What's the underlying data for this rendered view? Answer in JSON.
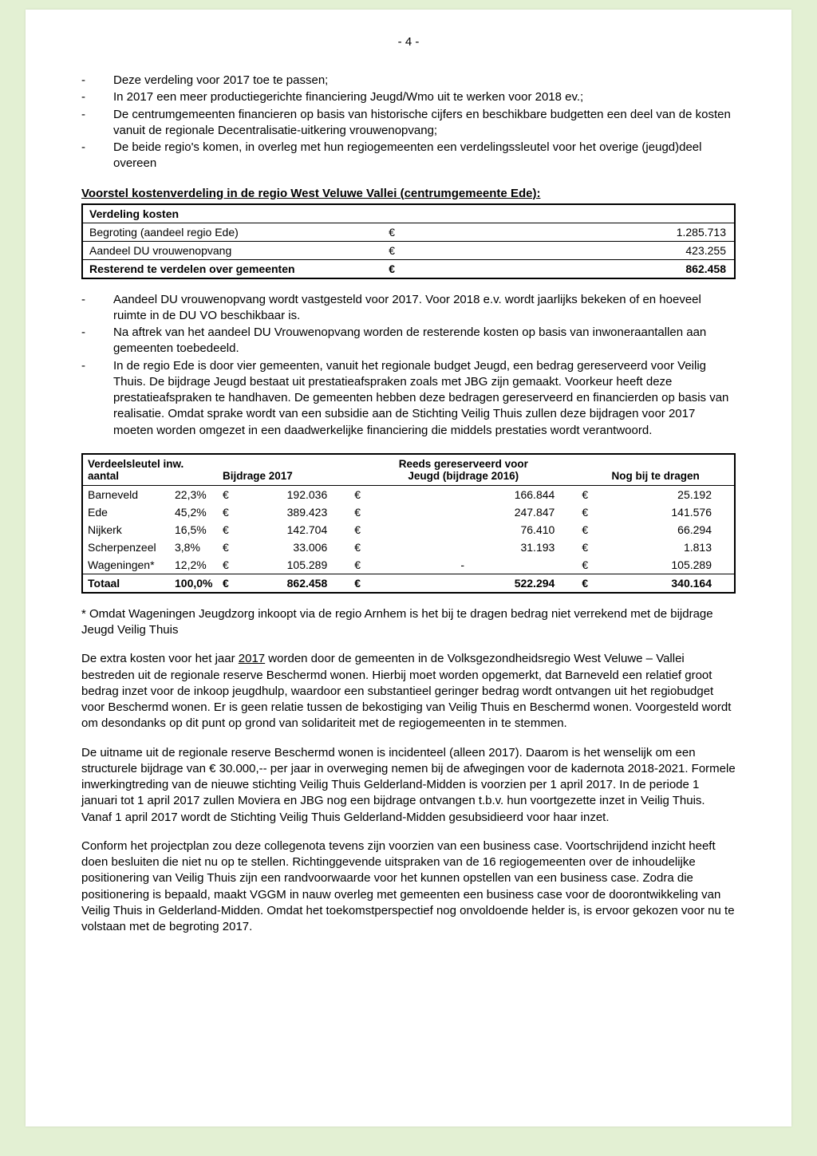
{
  "page_number": "- 4 -",
  "bullets_top": [
    "Deze verdeling voor 2017 toe te passen;",
    "In 2017 een meer productiegerichte financiering Jeugd/Wmo uit te werken voor 2018 ev.;",
    "De centrumgemeenten financieren op basis van historische cijfers en beschikbare budgetten een deel van de kosten vanuit de regionale Decentralisatie-uitkering vrouwenopvang;",
    "De beide regio's komen, in overleg met hun regiogemeenten een verdelingssleutel voor het overige (jeugd)deel overeen"
  ],
  "heading_main": "Voorstel kostenverdeling in de regio West Veluwe Vallei (centrumgemeente Ede):",
  "kosten_table": {
    "header": "Verdeling kosten",
    "rows": [
      {
        "label": "Begroting (aandeel regio Ede)",
        "cur": "€",
        "amount": "1.285.713",
        "bold": false
      },
      {
        "label": "Aandeel DU vrouwenopvang",
        "cur": "€",
        "amount": "423.255",
        "bold": false
      },
      {
        "label": "Resterend te verdelen over gemeenten",
        "cur": "€",
        "amount": "862.458",
        "bold": true
      }
    ]
  },
  "bullets_mid": [
    "Aandeel DU vrouwenopvang wordt vastgesteld voor 2017. Voor 2018 e.v. wordt jaarlijks bekeken of en hoeveel ruimte in de DU VO beschikbaar is.",
    "Na aftrek van het aandeel DU Vrouwenopvang worden de resterende kosten op basis van inwoneraantallen aan gemeenten toebedeeld.",
    "In de regio Ede is door vier gemeenten, vanuit het regionale budget Jeugd, een bedrag gereserveerd voor Veilig Thuis. De bijdrage Jeugd bestaat uit prestatieafspraken zoals met JBG zijn gemaakt. Voorkeur heeft deze prestatieafspraken te handhaven. De gemeenten hebben deze bedragen gereserveerd en financierden op basis van realisatie. Omdat sprake wordt van een subsidie aan de Stichting Veilig Thuis zullen deze bijdragen voor 2017 moeten worden omgezet in een daadwerkelijke financiering die middels prestaties wordt verantwoord."
  ],
  "verdeel_table": {
    "h1": "Verdeelsleutel inw. aantal",
    "h2": "Bijdrage 2017",
    "h3a": "Reeds gereserveerd voor",
    "h3b": "Jeugd (bijdrage 2016)",
    "h4": "Nog bij te dragen",
    "rows": [
      {
        "name": "Barneveld",
        "pct": "22,3%",
        "cur": "€",
        "bijdrage": "192.036",
        "reeds": "166.844",
        "nog": "25.192"
      },
      {
        "name": "Ede",
        "pct": "45,2%",
        "cur": "€",
        "bijdrage": "389.423",
        "reeds": "247.847",
        "nog": "141.576"
      },
      {
        "name": "Nijkerk",
        "pct": "16,5%",
        "cur": "€",
        "bijdrage": "142.704",
        "reeds": "76.410",
        "nog": "66.294"
      },
      {
        "name": "Scherpenzeel",
        "pct": "3,8%",
        "cur": "€",
        "bijdrage": "33.006",
        "reeds": "31.193",
        "nog": "1.813"
      },
      {
        "name": "Wageningen*",
        "pct": "12,2%",
        "cur": "€",
        "bijdrage": "105.289",
        "reeds": "-",
        "nog": "105.289"
      }
    ],
    "total": {
      "name": "Totaal",
      "pct": "100,0%",
      "cur": "€",
      "bijdrage": "862.458",
      "reeds": "522.294",
      "nog": "340.164"
    }
  },
  "footnote": "* Omdat Wageningen Jeugdzorg inkoopt via de regio Arnhem is het bij te dragen bedrag niet verrekend met de bijdrage Jeugd Veilig Thuis",
  "para3_pre": "De extra kosten voor het jaar ",
  "para3_year": "2017",
  "para3_post": " worden door de gemeenten in de Volksgezondheidsregio West Veluwe – Vallei bestreden uit de regionale reserve Beschermd wonen. Hierbij moet worden opgemerkt, dat Barneveld een relatief groot bedrag inzet voor de inkoop jeugdhulp, waardoor een substantieel geringer bedrag wordt ontvangen uit het regiobudget voor Beschermd wonen. Er is geen relatie tussen de bekostiging van Veilig Thuis en Beschermd wonen. Voorgesteld wordt om desondanks op dit punt op grond van solidariteit met de regiogemeenten in te stemmen.",
  "para4": "De uitname uit de regionale reserve Beschermd wonen is incidenteel (alleen 2017). Daarom is het wenselijk om een structurele bijdrage van € 30.000,-- per jaar in overweging nemen bij de afwegingen voor de kadernota 2018-2021. Formele inwerkingtreding van de nieuwe stichting Veilig Thuis Gelderland-Midden is voorzien per 1 april 2017. In de periode 1 januari tot 1 april 2017 zullen Moviera en JBG nog een bijdrage ontvangen t.b.v. hun voortgezette inzet in Veilig Thuis. Vanaf 1 april 2017 wordt de Stichting Veilig Thuis Gelderland-Midden gesubsidieerd voor haar inzet.",
  "para5": "Conform het projectplan zou deze collegenota tevens zijn voorzien van een business case. Voortschrijdend inzicht heeft doen besluiten die niet nu op te stellen. Richtinggevende uitspraken van de 16 regiogemeenten over de inhoudelijke positionering van Veilig Thuis zijn een randvoorwaarde voor het kunnen opstellen van een business case. Zodra die positionering is bepaald, maakt VGGM in nauw overleg met gemeenten een business case voor de doorontwikkeling van Veilig Thuis in Gelderland-Midden. Omdat het toekomstperspectief nog onvoldoende helder is, is ervoor gekozen voor nu te volstaan met de begroting 2017."
}
